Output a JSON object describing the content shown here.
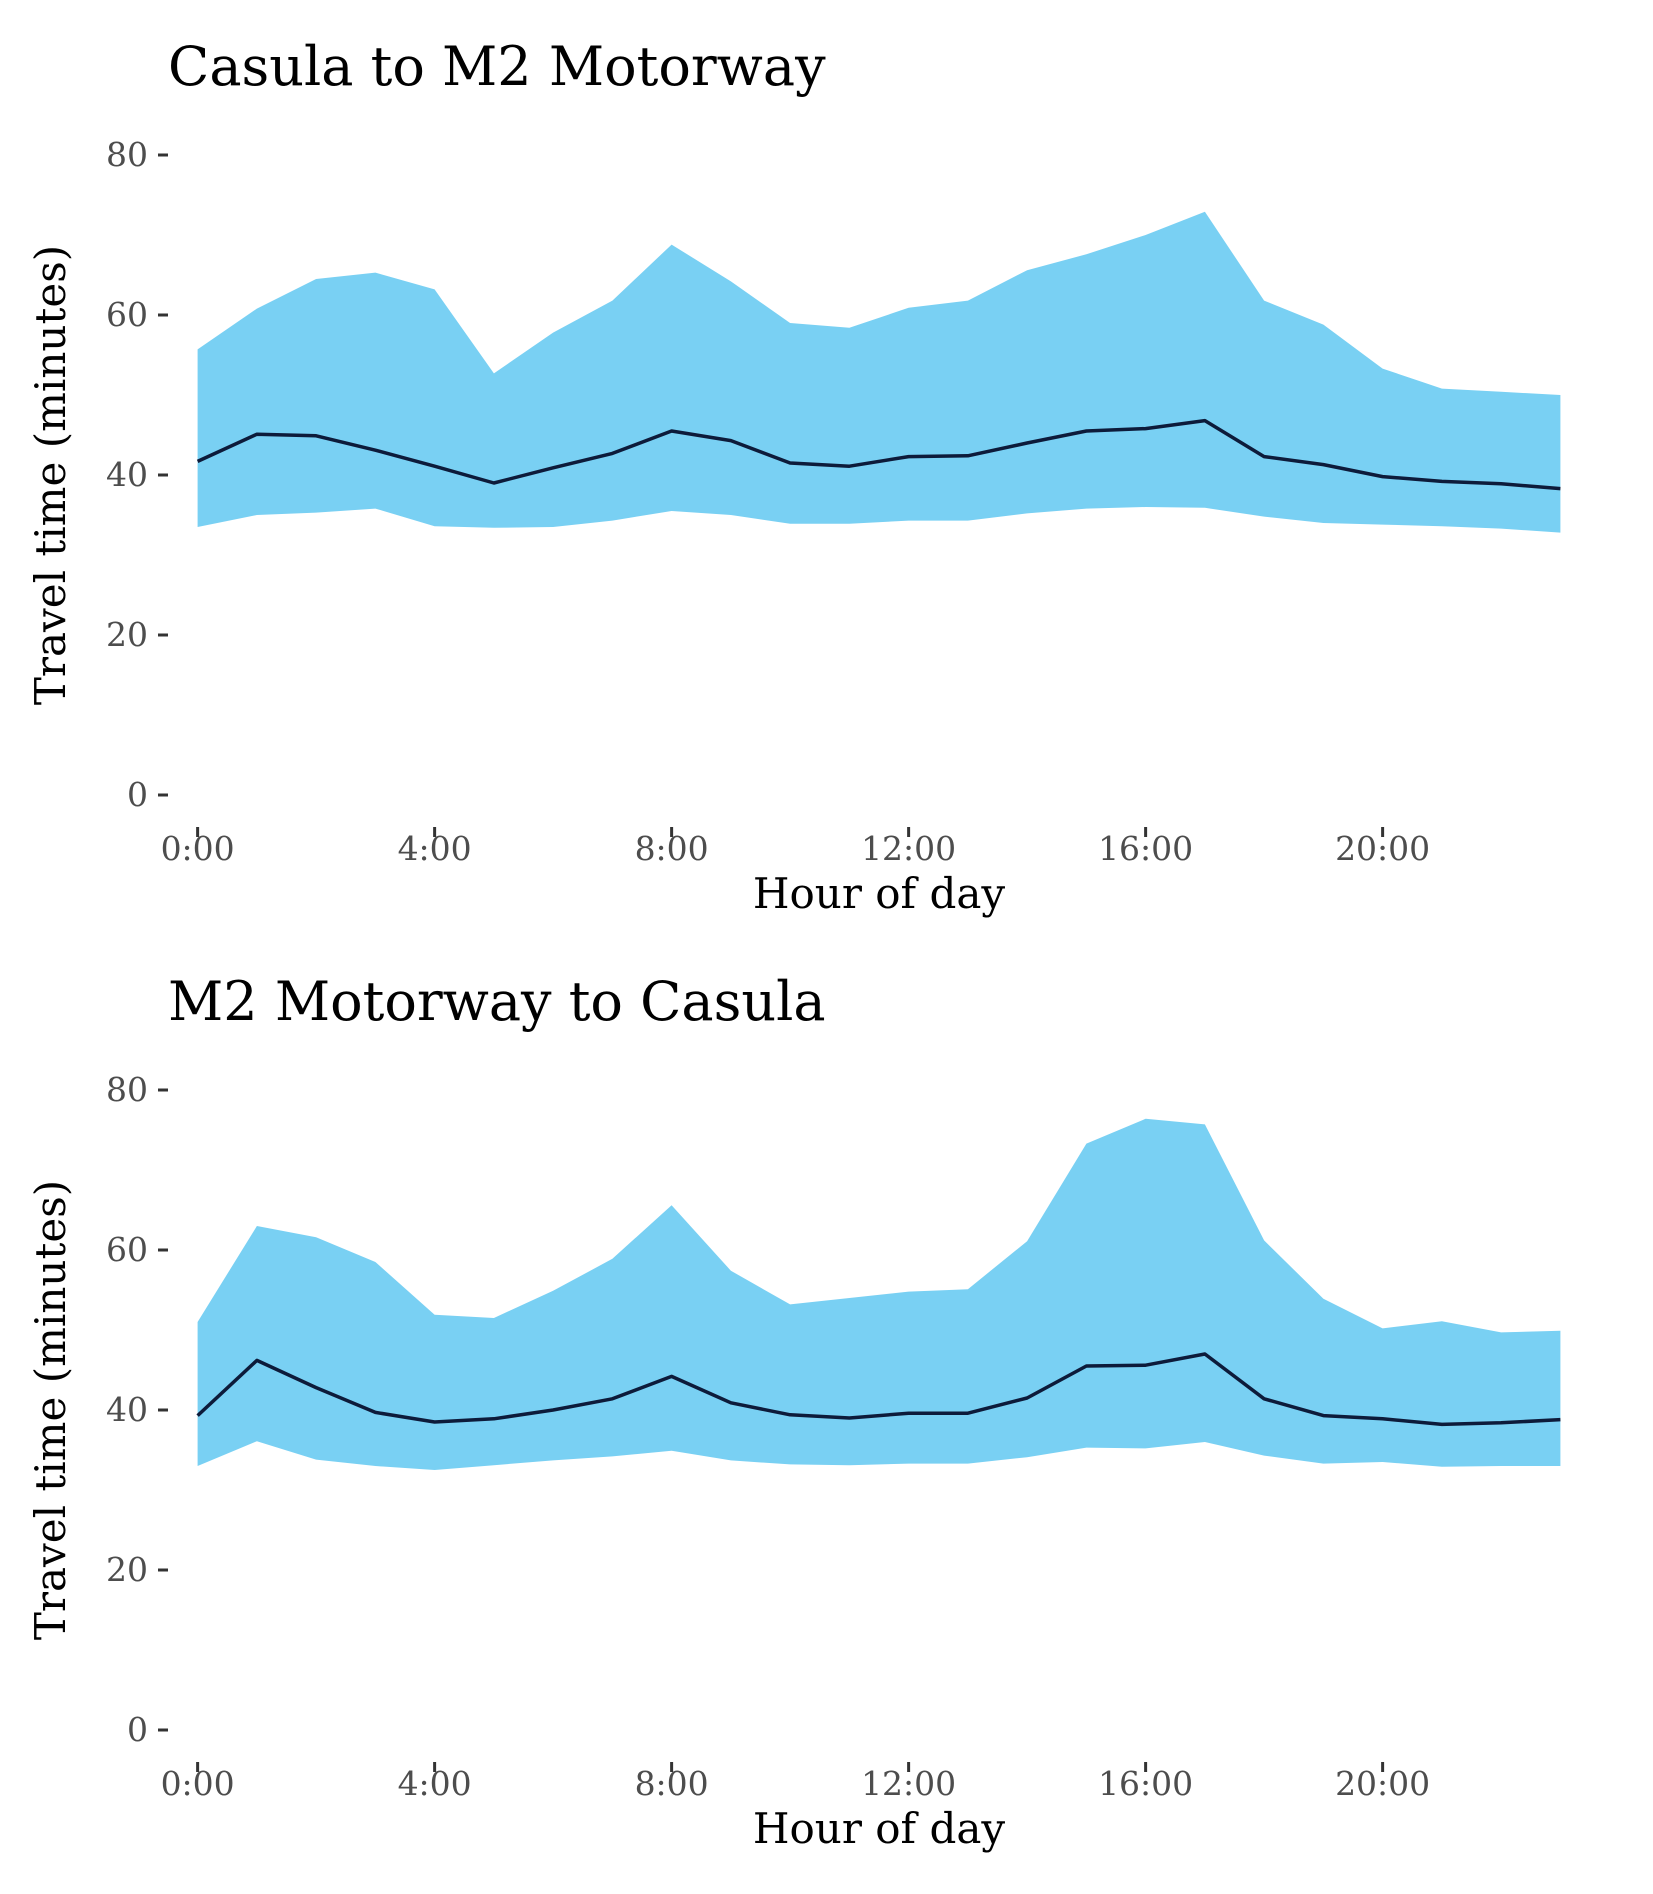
{
  "chart_data": [
    {
      "type": "area",
      "title": "Casula to M2 Motorway",
      "xlabel": "Hour of day",
      "ylabel": "Travel time (minutes)",
      "x": [
        0,
        1,
        2,
        3,
        4,
        5,
        6,
        7,
        8,
        9,
        10,
        11,
        12,
        13,
        14,
        15,
        16,
        17,
        18,
        19,
        20,
        21,
        22,
        23
      ],
      "xticks": [
        0,
        4,
        8,
        12,
        16,
        20
      ],
      "xtick_labels": [
        "0:00",
        "4:00",
        "8:00",
        "12:00",
        "16:00",
        "20:00"
      ],
      "xlim": [
        -0.5,
        23.5
      ],
      "ylim": [
        0,
        80
      ],
      "yticks": [
        0,
        20,
        40,
        60,
        80
      ],
      "ytick_labels": [
        "0",
        "20",
        "40",
        "60",
        "80"
      ],
      "grid": false,
      "series": [
        {
          "role": "band-upper",
          "values": [
            55.7,
            60.8,
            64.5,
            65.3,
            63.2,
            52.7,
            57.8,
            61.8,
            68.8,
            64.2,
            59.0,
            58.4,
            60.9,
            61.8,
            65.6,
            67.6,
            70.0,
            72.9,
            61.8,
            58.8,
            53.3,
            50.8,
            50.4,
            50.0
          ]
        },
        {
          "role": "band-lower",
          "values": [
            33.5,
            35.0,
            35.3,
            35.8,
            33.6,
            33.4,
            33.5,
            34.3,
            35.5,
            35.0,
            33.9,
            33.9,
            34.3,
            34.3,
            35.2,
            35.8,
            36.0,
            35.9,
            34.8,
            34.0,
            33.8,
            33.6,
            33.3,
            32.8
          ]
        },
        {
          "role": "median",
          "values": [
            41.7,
            45.1,
            44.9,
            43.1,
            41.1,
            39.0,
            40.9,
            42.7,
            45.5,
            44.3,
            41.5,
            41.1,
            42.3,
            42.4,
            44.0,
            45.5,
            45.8,
            46.8,
            42.3,
            41.3,
            39.8,
            39.2,
            38.9,
            38.3
          ]
        }
      ],
      "colors": {
        "band": "#79d0f3",
        "line": "#0d1b3a"
      }
    },
    {
      "type": "area",
      "title": "M2 Motorway to Casula",
      "xlabel": "Hour of day",
      "ylabel": "Travel time (minutes)",
      "x": [
        0,
        1,
        2,
        3,
        4,
        5,
        6,
        7,
        8,
        9,
        10,
        11,
        12,
        13,
        14,
        15,
        16,
        17,
        18,
        19,
        20,
        21,
        22,
        23
      ],
      "xticks": [
        0,
        4,
        8,
        12,
        16,
        20
      ],
      "xtick_labels": [
        "0:00",
        "4:00",
        "8:00",
        "12:00",
        "16:00",
        "20:00"
      ],
      "xlim": [
        -0.5,
        23.5
      ],
      "ylim": [
        0,
        80
      ],
      "yticks": [
        0,
        20,
        40,
        60,
        80
      ],
      "ytick_labels": [
        "0",
        "20",
        "40",
        "60",
        "80"
      ],
      "grid": false,
      "series": [
        {
          "role": "band-upper",
          "values": [
            51.0,
            63.0,
            61.6,
            58.5,
            51.9,
            51.5,
            54.9,
            58.9,
            65.6,
            57.4,
            53.2,
            54.0,
            54.8,
            55.1,
            61.1,
            73.3,
            76.4,
            75.7,
            61.2,
            53.9,
            50.2,
            51.1,
            49.7,
            49.9
          ]
        },
        {
          "role": "band-lower",
          "values": [
            33.0,
            36.1,
            33.8,
            33.0,
            32.5,
            33.1,
            33.7,
            34.2,
            34.9,
            33.7,
            33.2,
            33.1,
            33.3,
            33.3,
            34.1,
            35.3,
            35.2,
            36.0,
            34.3,
            33.3,
            33.5,
            32.9,
            33.0,
            33.0
          ]
        },
        {
          "role": "median",
          "values": [
            39.3,
            46.2,
            42.8,
            39.7,
            38.5,
            38.9,
            40.0,
            41.4,
            44.2,
            40.9,
            39.4,
            39.0,
            39.6,
            39.6,
            41.5,
            45.5,
            45.6,
            47.0,
            41.4,
            39.3,
            38.9,
            38.2,
            38.4,
            38.8
          ]
        }
      ],
      "colors": {
        "band": "#79d0f3",
        "line": "#0d1b3a"
      }
    }
  ]
}
